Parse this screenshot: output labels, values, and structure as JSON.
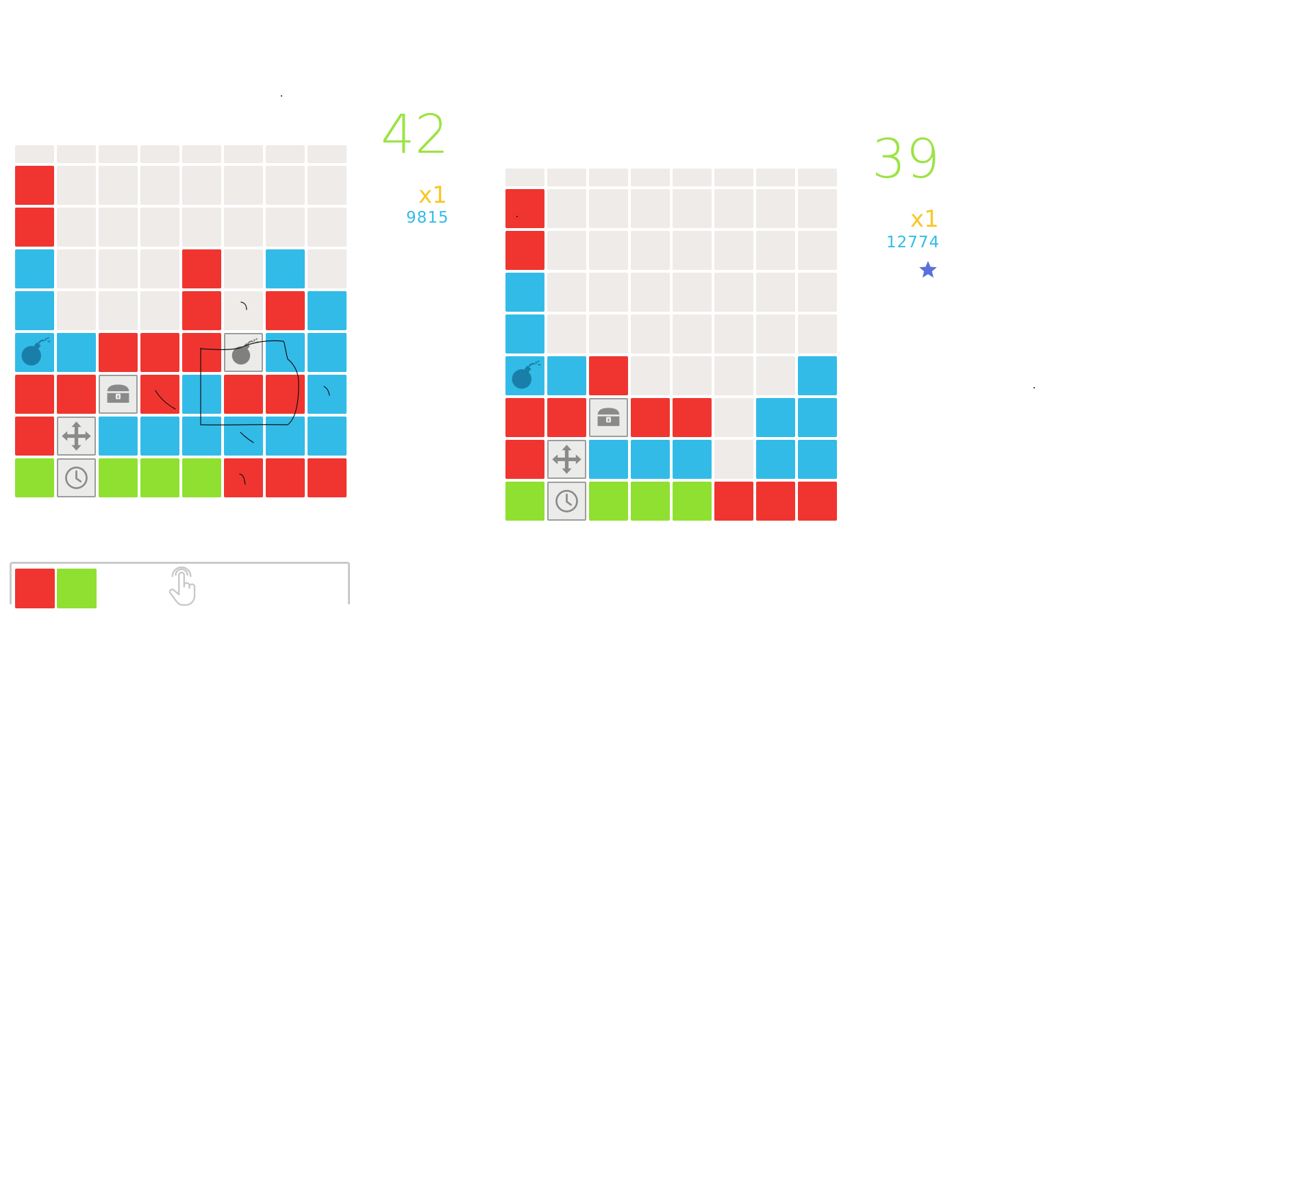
{
  "colors": {
    "empty": "#eeebe9",
    "red": "#f03530",
    "blue": "#33bbe8",
    "green": "#8fe030",
    "powerup": "#ebebea",
    "score": "#9be343",
    "multiplier": "#f7c72b",
    "points": "#33bbe8",
    "star": "#5b6fdc"
  },
  "left_panel": {
    "score": "42",
    "multiplier": "x1",
    "points": "9815",
    "rows": [
      [
        "e",
        "e",
        "e",
        "e",
        "e",
        "e",
        "e",
        "e"
      ],
      [
        "r",
        "e",
        "e",
        "e",
        "e",
        "e",
        "e",
        "e"
      ],
      [
        "r",
        "e",
        "e",
        "e",
        "e",
        "e",
        "e",
        "e"
      ],
      [
        "b",
        "e",
        "e",
        "e",
        "r",
        "e",
        "b",
        "e"
      ],
      [
        "b",
        "e",
        "e",
        "e",
        "r",
        "e",
        "r",
        "b"
      ],
      [
        "bomb-blue",
        "b",
        "r",
        "r",
        "r",
        "bomb-grey",
        "b",
        "b"
      ],
      [
        "r",
        "r",
        "chest",
        "r",
        "b",
        "r",
        "r",
        "b"
      ],
      [
        "r",
        "move",
        "b",
        "b",
        "b",
        "b",
        "b",
        "b"
      ],
      [
        "g",
        "clock",
        "g",
        "g",
        "g",
        "r",
        "r",
        "r"
      ]
    ],
    "tray": [
      "r",
      "g"
    ],
    "tray_icon": "tap-hand-icon"
  },
  "right_panel": {
    "score": "39",
    "multiplier": "x1",
    "points": "12774",
    "badge_icon": "star-icon",
    "rows": [
      [
        "e",
        "e",
        "e",
        "e",
        "e",
        "e",
        "e",
        "e"
      ],
      [
        "r",
        "e",
        "e",
        "e",
        "e",
        "e",
        "e",
        "e"
      ],
      [
        "r",
        "e",
        "e",
        "e",
        "e",
        "e",
        "e",
        "e"
      ],
      [
        "b",
        "e",
        "e",
        "e",
        "e",
        "e",
        "e",
        "e"
      ],
      [
        "b",
        "e",
        "e",
        "e",
        "e",
        "e",
        "e",
        "e"
      ],
      [
        "bomb-blue",
        "b",
        "r",
        "e",
        "e",
        "e",
        "e",
        "b"
      ],
      [
        "r",
        "r",
        "chest",
        "r",
        "r",
        "e",
        "b",
        "b"
      ],
      [
        "r",
        "move",
        "b",
        "b",
        "b",
        "e",
        "b",
        "b"
      ],
      [
        "g",
        "clock",
        "g",
        "g",
        "g",
        "r",
        "r",
        "r"
      ]
    ]
  }
}
